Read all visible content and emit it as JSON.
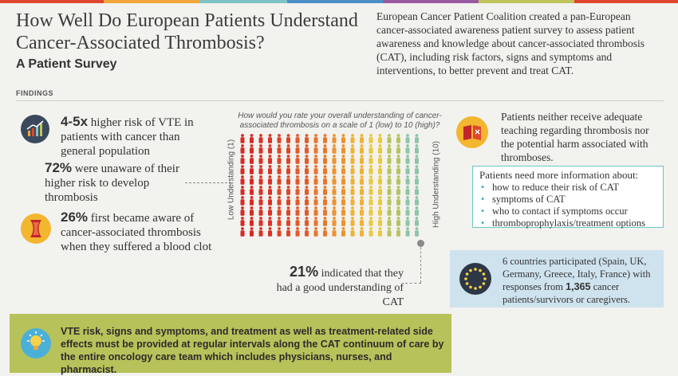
{
  "header": {
    "title": "How Well Do European Patients Understand Cancer-Associated Thrombosis?",
    "subtitle": "A Patient Survey",
    "intro": "European Cancer Patient Coalition created a pan-European cancer-associated awareness patient survey to assess patient awareness and knowledge about cancer-associated thrombosis (CAT), including risk factors, signs and symptoms and interventions, to better prevent and treat CAT."
  },
  "section_label": "FINDINGS",
  "findings": {
    "vte": {
      "highlight": "4-5x",
      "text": " higher risk of VTE in patients with cancer than general population"
    },
    "unaware": {
      "highlight": "72%",
      "text": " were unaware of their higher risk to develop thrombosis"
    },
    "first_aware": {
      "highlight": "26%",
      "text": " first became aware of cancer-associated thrombosis when they suffered a blood clot"
    },
    "good_understanding": {
      "highlight": "21%",
      "text": " indicated that they had a good understanding of CAT"
    },
    "teaching": "Patients neither receive adequate teaching regarding thrombosis nor the potential harm associated with thromboses."
  },
  "survey": {
    "question": "How would you rate your overall understanding of cancer-associated thrombosis on a scale of 1 (low) to 10 (high)?",
    "low_label": "Low Understanding (1)",
    "high_label": "High Understanding (10)",
    "colors": [
      "#d62a24",
      "#d93226",
      "#dd4427",
      "#e15a2b",
      "#e7772c",
      "#eb9330",
      "#efb234",
      "#e9c93e",
      "#b9c25e",
      "#8fc4a6"
    ]
  },
  "info_needed": {
    "heading": "Patients need more information about:",
    "items": [
      "how to reduce their risk of CAT",
      "symptoms of CAT",
      "who to contact if symptoms occur",
      "thromboprophylaxis/treatment options"
    ]
  },
  "countries": {
    "text_before": "6 countries participated (Spain, UK, Germany, Greece, Italy, France) with responses from ",
    "highlight": "1,365",
    "text_after": " cancer patients/survivors or caregivers."
  },
  "recommendation": "VTE risk, signs and symptoms, and treatment as well as treatment-related side effects must be provided at regular intervals along the CAT continuum of care by the entire oncology care team which includes physicians, nurses, and pharmacist."
}
